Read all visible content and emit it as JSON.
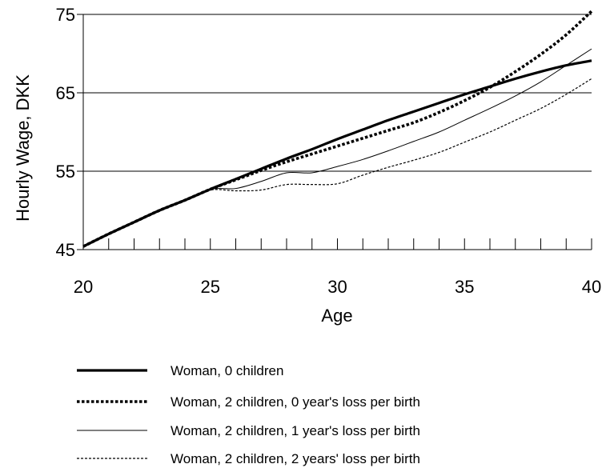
{
  "chart_data": {
    "type": "line",
    "title": "",
    "xlabel": "Age",
    "ylabel": "Hourly Wage, DKK",
    "xlim": [
      20,
      40
    ],
    "ylim": [
      45,
      75
    ],
    "x_ticks": [
      20,
      25,
      30,
      35,
      40
    ],
    "x_tick_labels": [
      "20",
      "25",
      "30",
      "35",
      "40"
    ],
    "y_ticks": [
      45,
      55,
      65,
      75
    ],
    "y_tick_labels": [
      "45",
      "55",
      "65",
      "75"
    ],
    "grid": "horizontal",
    "legend_position": "bottom",
    "series": [
      {
        "name": "Woman, 0 children",
        "style": "thick-solid",
        "x": [
          20,
          21,
          22,
          23,
          24,
          25,
          26,
          27,
          28,
          29,
          30,
          31,
          32,
          33,
          34,
          35,
          36,
          37,
          38,
          39,
          40
        ],
        "y": [
          45.4,
          47.0,
          48.5,
          50.0,
          51.3,
          52.7,
          54.0,
          55.3,
          56.6,
          57.8,
          59.1,
          60.3,
          61.5,
          62.6,
          63.7,
          64.8,
          65.8,
          66.8,
          67.7,
          68.5,
          69.1
        ]
      },
      {
        "name": "Woman, 2 children, 0 year's loss per birth",
        "style": "thick-dotted",
        "x": [
          20,
          21,
          22,
          23,
          24,
          25,
          26,
          27,
          28,
          29,
          30,
          31,
          32,
          33,
          34,
          35,
          36,
          37,
          38,
          39,
          40
        ],
        "y": [
          45.4,
          47.0,
          48.5,
          50.0,
          51.3,
          52.7,
          53.9,
          55.1,
          56.2,
          57.2,
          58.2,
          59.2,
          60.2,
          61.2,
          62.5,
          64.0,
          65.7,
          67.7,
          69.9,
          72.4,
          75.4
        ]
      },
      {
        "name": "Woman, 2 children, 1 year's loss per birth",
        "style": "thin-solid",
        "x": [
          20,
          21,
          22,
          23,
          24,
          25,
          26,
          27,
          28,
          29,
          30,
          31,
          32,
          33,
          34,
          35,
          36,
          37,
          38,
          39,
          40
        ],
        "y": [
          45.4,
          47.0,
          48.5,
          50.0,
          51.3,
          52.7,
          52.8,
          53.7,
          54.8,
          54.8,
          55.6,
          56.5,
          57.6,
          58.8,
          60.0,
          61.5,
          63.0,
          64.6,
          66.4,
          68.5,
          70.6
        ]
      },
      {
        "name": "Woman, 2 children, 2 years' loss per birth",
        "style": "thin-dashed",
        "x": [
          20,
          21,
          22,
          23,
          24,
          25,
          26,
          27,
          28,
          29,
          30,
          31,
          32,
          33,
          34,
          35,
          36,
          37,
          38,
          39,
          40
        ],
        "y": [
          45.4,
          47.0,
          48.5,
          50.0,
          51.3,
          52.6,
          52.5,
          52.6,
          53.3,
          53.3,
          53.4,
          54.5,
          55.5,
          56.4,
          57.4,
          58.7,
          60.0,
          61.5,
          63.0,
          64.8,
          66.8
        ]
      }
    ]
  }
}
